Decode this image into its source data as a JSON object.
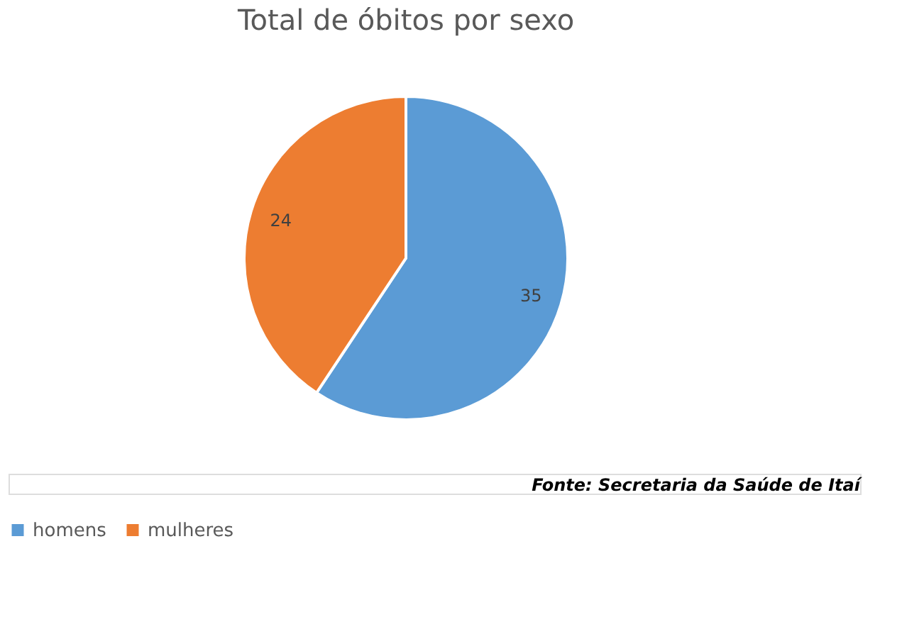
{
  "chart_data": {
    "type": "pie",
    "title": "Total de óbitos por sexo",
    "categories": [
      "homens",
      "mulheres"
    ],
    "values": [
      35,
      24
    ],
    "colors": [
      "#5b9bd5",
      "#ed7d31"
    ],
    "data_labels": true,
    "legend": "bottom",
    "annotations": [
      "Fonte: Secretaria da Saúde de Itaí"
    ]
  }
}
